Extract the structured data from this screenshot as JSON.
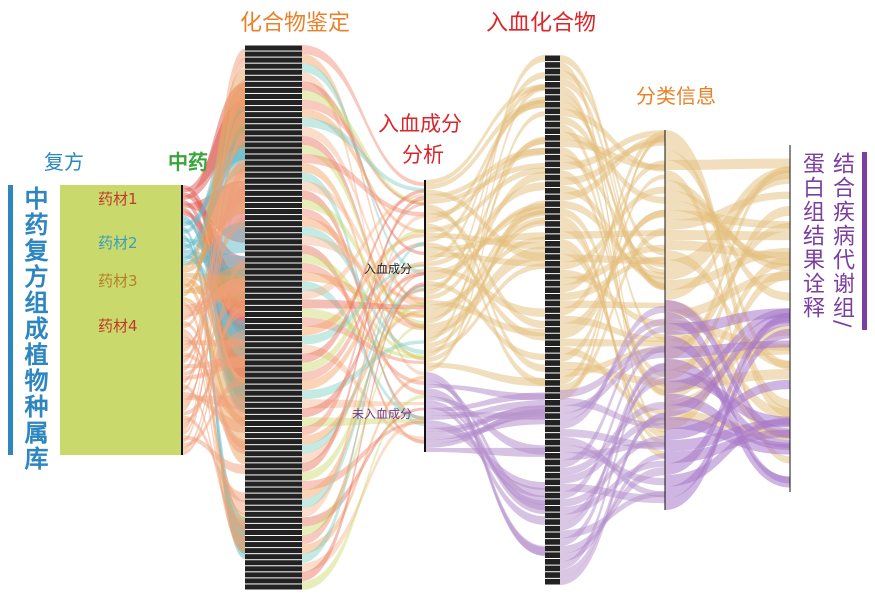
{
  "left_label": "中药复方组成植物种属库",
  "headers": {
    "formula": "复方",
    "herb": "中药",
    "compound_id": "化合物鉴定",
    "blood_analysis": [
      "入血成分",
      "分析"
    ],
    "blood_compounds": "入血化合物",
    "classification": "分类信息",
    "interpretation": [
      "结合疾病代谢组/",
      "蛋白组结果诠释"
    ]
  },
  "herbs": [
    "药材1",
    "药材2",
    "药材3",
    "药材4"
  ],
  "groups": [
    "入血成分",
    "未入血成分"
  ]
}
